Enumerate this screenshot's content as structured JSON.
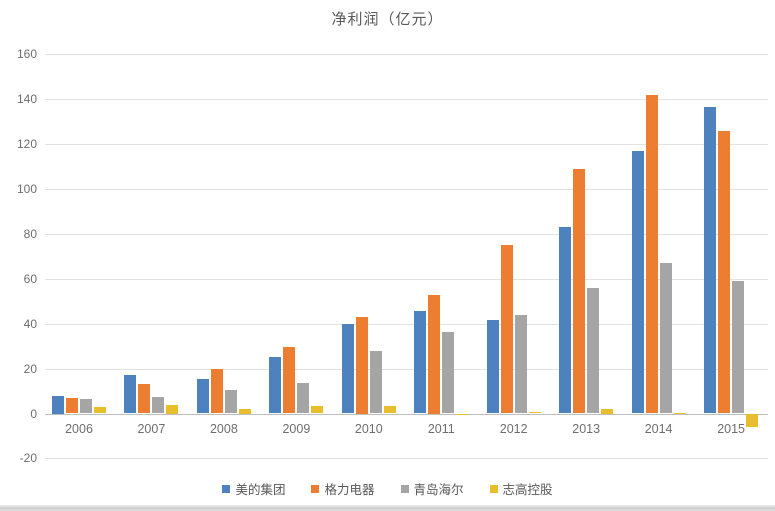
{
  "chart_data": {
    "type": "bar",
    "title": "净利润（亿元）",
    "xlabel": "",
    "ylabel": "",
    "categories": [
      "2006",
      "2007",
      "2008",
      "2009",
      "2010",
      "2011",
      "2012",
      "2013",
      "2014",
      "2015"
    ],
    "series": [
      {
        "name": "美的集团",
        "color": "#4d82be",
        "values": [
          8,
          17,
          15.5,
          25,
          40,
          45.5,
          41.5,
          83,
          117,
          136.5
        ]
      },
      {
        "name": "格力电器",
        "color": "#ed7d31",
        "values": [
          7,
          13,
          20,
          29.5,
          43,
          53,
          75,
          109,
          142,
          126
        ]
      },
      {
        "name": "青岛海尔",
        "color": "#a5a5a5",
        "values": [
          6.5,
          7.5,
          10.5,
          13.5,
          28,
          36.5,
          44,
          56,
          67,
          59
        ]
      },
      {
        "name": "志高控股",
        "color": "#e9be2c",
        "values": [
          3,
          4,
          2,
          3.5,
          3.5,
          -0.5,
          0.5,
          2,
          0.3,
          -6
        ]
      }
    ],
    "ylim": [
      -20,
      160
    ],
    "y_ticks": [
      160,
      140,
      120,
      100,
      80,
      60,
      40,
      20,
      0,
      -20
    ],
    "grid": true,
    "legend_position": "bottom"
  }
}
